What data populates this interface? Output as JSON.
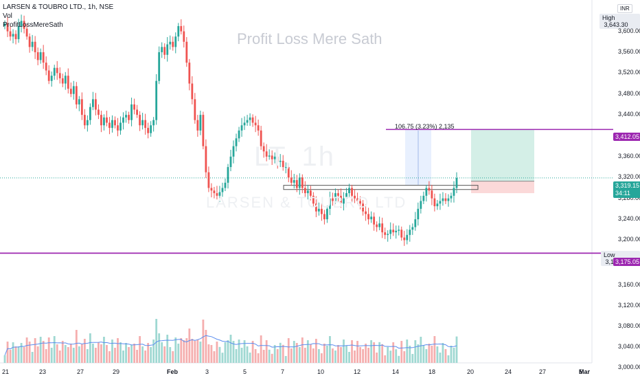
{
  "legend": {
    "symbol_line": "LARSEN & TOUBRO LTD., 1h, NSE",
    "vol_label": "Vol",
    "indicator_label": "ProfitLossMereSath"
  },
  "watermark": "Profit Loss Mere Sath",
  "faint_symbol": "LT, 1h",
  "faint_name": "LARSEN & TOUBRO LTD",
  "currency": "INR",
  "high": {
    "label": "High",
    "value": "3,643.30"
  },
  "low": {
    "label": "Low",
    "value": "3,183.00"
  },
  "price_axis": [
    "3,600.00",
    "3,560.00",
    "3,520.00",
    "3,480.00",
    "3,440.00",
    "3,400.00",
    "3,360.00",
    "3,320.00",
    "3,280.00",
    "3,240.00",
    "3,200.00",
    "3,160.00",
    "3,120.00",
    "3,080.00",
    "3,040.00",
    "3,000.00"
  ],
  "time_axis": [
    "21",
    "23",
    "27",
    "29",
    "Feb",
    "3",
    "5",
    "7",
    "10",
    "12",
    "14",
    "18",
    "20",
    "24",
    "27",
    "Mar",
    "5"
  ],
  "tags": {
    "target": "3,412.05",
    "current": "3,319.15",
    "countdown": "34:11",
    "stop": "3,175.05"
  },
  "measure_text": "106.75 (3.23%) 2,135",
  "colors": {
    "up": "#26a69a",
    "down": "#ef5350",
    "line": "#9c27b0",
    "profit_zone": "#d4efe7",
    "loss_zone": "#fbd9d9",
    "measure_zone": "#e8f0fe",
    "current": "#26a69a",
    "volume_ma": "#5b8def"
  },
  "chart_data": {
    "type": "candlestick",
    "symbol": "LARSEN & TOUBRO LTD., 1h, NSE",
    "ylim": [
      3140,
      3660
    ],
    "levels": {
      "target": 3412.05,
      "current": 3319.15,
      "stop": 3175.05,
      "high": 3643.3,
      "low": 3183.0
    },
    "measure": {
      "change": 106.75,
      "percent": 3.23,
      "text": "106.75 (3.23%) 2,135"
    },
    "closes": [
      3615,
      3600,
      3590,
      3595,
      3585,
      3610,
      3620,
      3605,
      3590,
      3570,
      3580,
      3560,
      3545,
      3560,
      3540,
      3525,
      3505,
      3515,
      3530,
      3520,
      3510,
      3500,
      3515,
      3490,
      3480,
      3495,
      3460,
      3470,
      3440,
      3420,
      3430,
      3455,
      3470,
      3450,
      3440,
      3420,
      3435,
      3425,
      3415,
      3430,
      3420,
      3410,
      3425,
      3435,
      3440,
      3430,
      3460,
      3450,
      3440,
      3420,
      3430,
      3415,
      3405,
      3420,
      3430,
      3505,
      3560,
      3570,
      3555,
      3575,
      3580,
      3570,
      3590,
      3610,
      3600,
      3580,
      3540,
      3500,
      3470,
      3430,
      3410,
      3440,
      3380,
      3330,
      3300,
      3295,
      3290,
      3285,
      3292,
      3300,
      3310,
      3340,
      3360,
      3380,
      3395,
      3410,
      3420,
      3425,
      3430,
      3435,
      3425,
      3420,
      3410,
      3380,
      3370,
      3360,
      3362,
      3355,
      3360,
      3350,
      3352,
      3340,
      3340,
      3320,
      3310,
      3315,
      3300,
      3320,
      3300,
      3290,
      3295,
      3285,
      3270,
      3255,
      3260,
      3250,
      3240,
      3260,
      3280,
      3275,
      3290,
      3285,
      3270,
      3280,
      3290,
      3300,
      3285,
      3280,
      3275,
      3270,
      3255,
      3250,
      3240,
      3245,
      3230,
      3225,
      3232,
      3215,
      3210,
      3212,
      3220,
      3215,
      3218,
      3220,
      3205,
      3200,
      3210,
      3220,
      3225,
      3240,
      3260,
      3275,
      3285,
      3300,
      3295,
      3280,
      3265,
      3270,
      3275,
      3280,
      3275,
      3280,
      3285,
      3300,
      3319
    ]
  }
}
